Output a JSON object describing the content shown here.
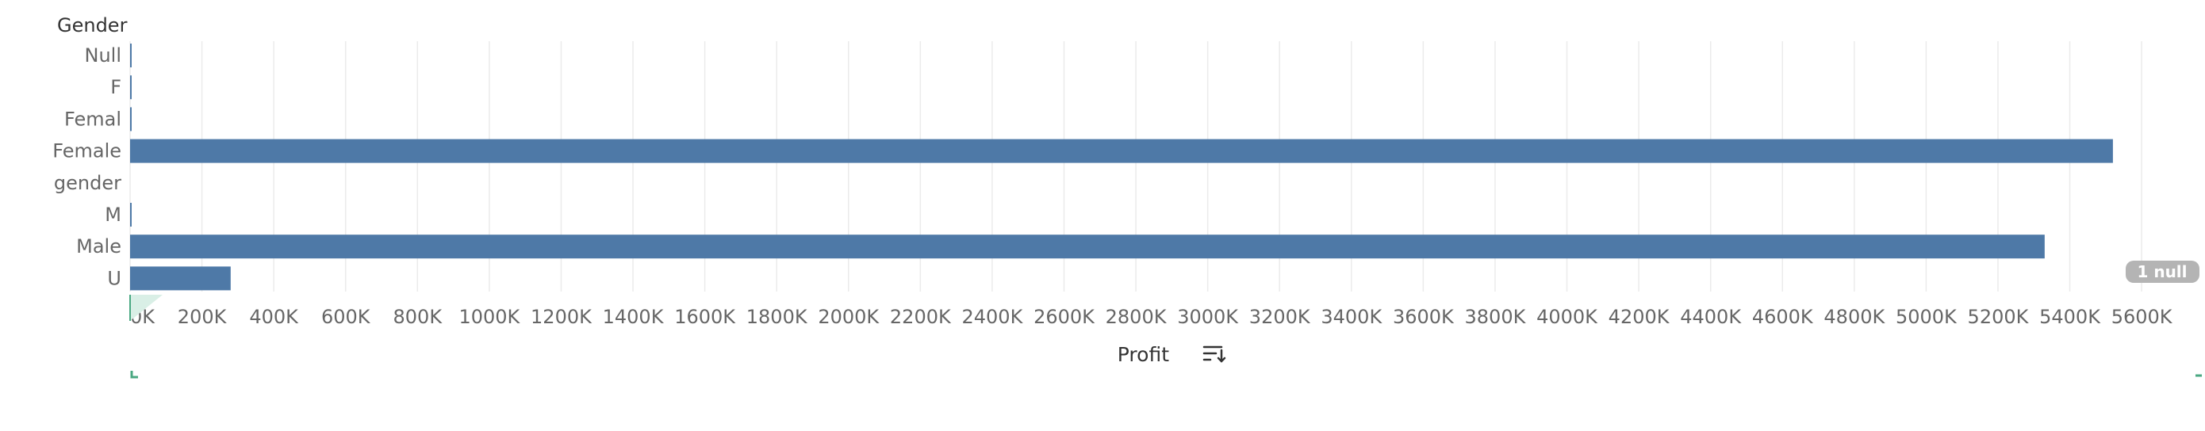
{
  "chart_data": {
    "type": "bar",
    "orientation": "horizontal",
    "row_header": "Gender",
    "categories": [
      "Null",
      "F",
      "Femal",
      "Female",
      "gender",
      "M",
      "Male",
      "U"
    ],
    "values": [
      1,
      1,
      1,
      5520,
      0,
      1,
      5330,
      280
    ],
    "xlabel": "Profit",
    "ylabel": "",
    "xlim": [
      0,
      5800
    ],
    "x_ticks": [
      0,
      200,
      400,
      600,
      800,
      1000,
      1200,
      1400,
      1600,
      1800,
      2000,
      2200,
      2400,
      2600,
      2800,
      3000,
      3200,
      3400,
      3600,
      3800,
      4000,
      4200,
      4400,
      4600,
      4800,
      5000,
      5200,
      5400,
      5600
    ],
    "x_tick_labels": [
      "0K",
      "200K",
      "400K",
      "600K",
      "800K",
      "1000K",
      "1200K",
      "1400K",
      "1600K",
      "1800K",
      "2000K",
      "2200K",
      "2400K",
      "2600K",
      "2800K",
      "3000K",
      "3200K",
      "3400K",
      "3600K",
      "3800K",
      "4000K",
      "4200K",
      "4400K",
      "4600K",
      "4800K",
      "5000K",
      "5200K",
      "5400K",
      "5600K"
    ],
    "null_indicator": "1 null",
    "grid": true,
    "bar_color": "#4e79a7"
  }
}
